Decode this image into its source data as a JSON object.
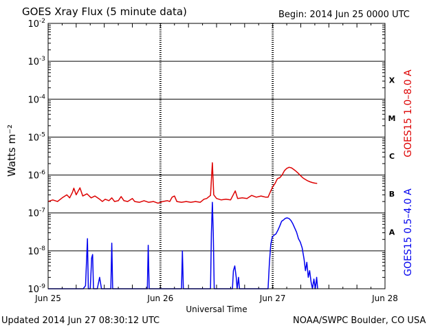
{
  "header": {
    "title": "GOES Xray Flux (5 minute data)",
    "begin": "Begin:  2014 Jun 25 0000 UTC"
  },
  "footer": {
    "updated": "Updated 2014 Jun 27 08:30:12 UTC",
    "credit": "NOAA/SWPC Boulder, CO USA"
  },
  "chart_data": {
    "type": "line",
    "title": "GOES Xray Flux (5 minute data)",
    "xlabel": "Universal Time",
    "ylabel": "Watts m⁻²",
    "y_scale": "log",
    "ylim": [
      1e-09,
      0.01
    ],
    "xlim": [
      0,
      72
    ],
    "x_unit": "hours since 2014 Jun 25 0000 UTC",
    "x_ticks": [
      {
        "x": 0,
        "label": "Jun 25"
      },
      {
        "x": 24,
        "label": "Jun 26"
      },
      {
        "x": 48,
        "label": "Jun 27"
      },
      {
        "x": 72,
        "label": "Jun 28"
      }
    ],
    "y_ticks": [
      {
        "exp": -9,
        "label": "10",
        "sup": "-9"
      },
      {
        "exp": -8,
        "label": "10",
        "sup": "-8"
      },
      {
        "exp": -7,
        "label": "10",
        "sup": "-7"
      },
      {
        "exp": -6,
        "label": "10",
        "sup": "-6"
      },
      {
        "exp": -5,
        "label": "10",
        "sup": "-5"
      },
      {
        "exp": -4,
        "label": "10",
        "sup": "-4"
      },
      {
        "exp": -3,
        "label": "10",
        "sup": "-3"
      },
      {
        "exp": -2,
        "label": "10",
        "sup": "-2"
      }
    ],
    "flare_classes": [
      {
        "label": "A",
        "exp": -7.5
      },
      {
        "label": "B",
        "exp": -6.5
      },
      {
        "label": "C",
        "exp": -5.5
      },
      {
        "label": "M",
        "exp": -4.5
      },
      {
        "label": "X",
        "exp": -3.5
      }
    ],
    "grid": true,
    "series": [
      {
        "name": "GOES15 1.0–8.0 A",
        "color": "#dd0000",
        "points": [
          [
            0.0,
            2e-07
          ],
          [
            1.0,
            2.2e-07
          ],
          [
            2.0,
            2e-07
          ],
          [
            3.0,
            2.5e-07
          ],
          [
            4.0,
            3e-07
          ],
          [
            4.6,
            2.5e-07
          ],
          [
            5.2,
            3.5e-07
          ],
          [
            5.5,
            4.5e-07
          ],
          [
            6.0,
            3e-07
          ],
          [
            6.8,
            4.6e-07
          ],
          [
            7.4,
            2.8e-07
          ],
          [
            8.3,
            3.2e-07
          ],
          [
            9.2,
            2.5e-07
          ],
          [
            10.0,
            2.8e-07
          ],
          [
            11.0,
            2.3e-07
          ],
          [
            11.6,
            2e-07
          ],
          [
            12.2,
            2.3e-07
          ],
          [
            13.0,
            2.1e-07
          ],
          [
            13.6,
            2.5e-07
          ],
          [
            14.2,
            2e-07
          ],
          [
            15.0,
            2.1e-07
          ],
          [
            15.6,
            2.7e-07
          ],
          [
            16.2,
            2.1e-07
          ],
          [
            17.0,
            2e-07
          ],
          [
            18.0,
            2.4e-07
          ],
          [
            18.5,
            2e-07
          ],
          [
            19.5,
            1.9e-07
          ],
          [
            20.5,
            2.1e-07
          ],
          [
            21.5,
            1.9e-07
          ],
          [
            22.5,
            2e-07
          ],
          [
            23.5,
            1.8e-07
          ],
          [
            24.5,
            2e-07
          ],
          [
            25.5,
            2.1e-07
          ],
          [
            26.0,
            2e-07
          ],
          [
            26.5,
            2.6e-07
          ],
          [
            27.0,
            2.8e-07
          ],
          [
            27.5,
            2e-07
          ],
          [
            28.5,
            1.9e-07
          ],
          [
            29.5,
            2e-07
          ],
          [
            30.5,
            1.9e-07
          ],
          [
            31.5,
            2e-07
          ],
          [
            32.5,
            1.9e-07
          ],
          [
            33.3,
            2.3e-07
          ],
          [
            33.9,
            2.4e-07
          ],
          [
            34.7,
            2.9e-07
          ],
          [
            35.1,
            2.1e-06
          ],
          [
            35.4,
            3e-07
          ],
          [
            36.0,
            2.4e-07
          ],
          [
            37.0,
            2.2e-07
          ],
          [
            38.0,
            2.3e-07
          ],
          [
            39.0,
            2.2e-07
          ],
          [
            40.0,
            3.8e-07
          ],
          [
            40.5,
            2.4e-07
          ],
          [
            41.5,
            2.5e-07
          ],
          [
            42.5,
            2.4e-07
          ],
          [
            43.5,
            2.9e-07
          ],
          [
            44.5,
            2.6e-07
          ],
          [
            45.5,
            2.8e-07
          ],
          [
            46.5,
            2.6e-07
          ],
          [
            47.0,
            2.6e-07
          ],
          [
            47.5,
            3.6e-07
          ],
          [
            48.0,
            4.9e-07
          ],
          [
            48.5,
            6e-07
          ],
          [
            49.0,
            8e-07
          ],
          [
            49.5,
            8.5e-07
          ],
          [
            50.0,
            1e-06
          ],
          [
            50.5,
            1.3e-06
          ],
          [
            51.0,
            1.5e-06
          ],
          [
            51.5,
            1.6e-06
          ],
          [
            52.0,
            1.55e-06
          ],
          [
            52.5,
            1.4e-06
          ],
          [
            53.0,
            1.25e-06
          ],
          [
            53.5,
            1.1e-06
          ],
          [
            54.0,
            9.5e-07
          ],
          [
            54.5,
            8.3e-07
          ],
          [
            55.0,
            7.6e-07
          ],
          [
            55.5,
            7e-07
          ],
          [
            56.0,
            6.6e-07
          ],
          [
            56.5,
            6.3e-07
          ],
          [
            57.0,
            6.1e-07
          ],
          [
            57.5,
            6e-07
          ]
        ]
      },
      {
        "name": "GOES15 0.5–4.0 A",
        "color": "#0000ee",
        "points": [
          [
            0.0,
            1e-09
          ],
          [
            7.5,
            1e-09
          ],
          [
            8.0,
            1.2e-09
          ],
          [
            8.4,
            2.1e-08
          ],
          [
            8.6,
            1e-09
          ],
          [
            9.0,
            1e-09
          ],
          [
            9.3,
            6.5e-09
          ],
          [
            9.5,
            8e-09
          ],
          [
            9.7,
            1e-09
          ],
          [
            10.5,
            1e-09
          ],
          [
            11.0,
            2e-09
          ],
          [
            11.4,
            1e-09
          ],
          [
            13.4,
            1e-09
          ],
          [
            13.6,
            1.6e-08
          ],
          [
            13.8,
            1e-09
          ],
          [
            21.2,
            1e-09
          ],
          [
            21.4,
            1.4e-08
          ],
          [
            21.6,
            1e-09
          ],
          [
            28.5,
            1e-09
          ],
          [
            28.7,
            1e-08
          ],
          [
            28.9,
            1e-09
          ],
          [
            34.7,
            1e-09
          ],
          [
            34.9,
            3e-08
          ],
          [
            35.1,
            1.9e-07
          ],
          [
            35.3,
            3e-08
          ],
          [
            35.5,
            1e-09
          ],
          [
            39.4,
            1e-09
          ],
          [
            39.6,
            3e-09
          ],
          [
            39.9,
            4e-09
          ],
          [
            40.2,
            2e-09
          ],
          [
            40.4,
            1e-09
          ],
          [
            40.7,
            2e-09
          ],
          [
            40.9,
            1e-09
          ],
          [
            46.7,
            1e-09
          ],
          [
            47.0,
            1e-09
          ],
          [
            47.3,
            5e-09
          ],
          [
            47.6,
            1.5e-08
          ],
          [
            47.9,
            2.3e-08
          ],
          [
            48.3,
            2.6e-08
          ],
          [
            48.7,
            2.8e-08
          ],
          [
            49.1,
            3.5e-08
          ],
          [
            49.5,
            4.5e-08
          ],
          [
            49.9,
            6e-08
          ],
          [
            50.3,
            6.5e-08
          ],
          [
            50.7,
            7.2e-08
          ],
          [
            51.1,
            7.4e-08
          ],
          [
            51.5,
            7.1e-08
          ],
          [
            51.9,
            6.3e-08
          ],
          [
            52.3,
            5.2e-08
          ],
          [
            52.7,
            4e-08
          ],
          [
            53.1,
            3.1e-08
          ],
          [
            53.5,
            2.1e-08
          ],
          [
            53.9,
            1.7e-08
          ],
          [
            54.3,
            1.2e-08
          ],
          [
            54.7,
            6e-09
          ],
          [
            55.0,
            3e-09
          ],
          [
            55.3,
            5e-09
          ],
          [
            55.6,
            2e-09
          ],
          [
            55.9,
            3e-09
          ],
          [
            56.2,
            1.5e-09
          ],
          [
            56.5,
            1e-09
          ],
          [
            56.8,
            1.8e-09
          ],
          [
            57.1,
            1e-09
          ],
          [
            57.4,
            2e-09
          ],
          [
            57.6,
            1e-09
          ]
        ]
      }
    ]
  }
}
